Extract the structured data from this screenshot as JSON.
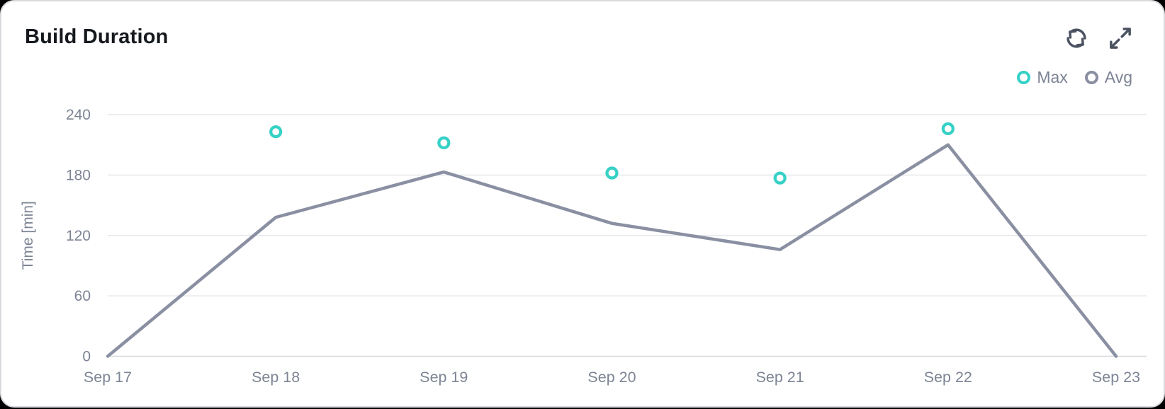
{
  "card": {
    "title": "Build Duration"
  },
  "toolbar": {
    "icons": [
      {
        "name": "refresh-icon",
        "meaning": "reload chart data"
      },
      {
        "name": "expand-icon",
        "meaning": "expand chart to fullscreen"
      }
    ]
  },
  "legend": [
    {
      "label": "Max",
      "color": "#36d1c6",
      "marker": "ring-circle"
    },
    {
      "label": "Avg",
      "color": "#8a90a2",
      "marker": "ring-circle"
    }
  ],
  "colors": {
    "accent_teal": "#36d1c6",
    "line_gray": "#8a90a2",
    "grid": "#e6e7eb",
    "grid_zero": "#d7d8de",
    "axis_text": "#7d8494",
    "title_text": "#15181d",
    "icon": "#4b5261",
    "card_bg": "#ffffff",
    "card_border": "#d9dade"
  },
  "chart_data": {
    "type": "line",
    "title": "Build Duration",
    "x": [
      "Sep 17",
      "Sep 18",
      "Sep 19",
      "Sep 20",
      "Sep 21",
      "Sep 22",
      "Sep 23"
    ],
    "series": [
      {
        "name": "Max",
        "type": "scatter",
        "color": "#36d1c6",
        "values": [
          null,
          223,
          212,
          182,
          177,
          226,
          null
        ]
      },
      {
        "name": "Avg",
        "type": "line",
        "color": "#8a90a2",
        "values": [
          0,
          138,
          183,
          132,
          106,
          210,
          0
        ]
      }
    ],
    "xlabel": "",
    "ylabel": "Time [min]",
    "yticks": [
      0,
      60,
      120,
      180,
      240
    ],
    "ylim": [
      0,
      240
    ],
    "grid": "horizontal",
    "legend_position": "top-right"
  }
}
